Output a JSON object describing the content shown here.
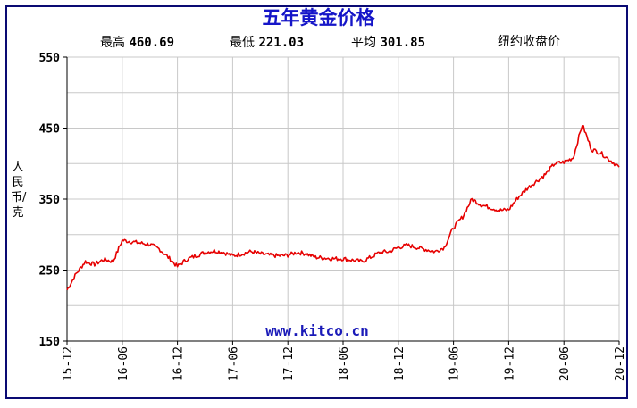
{
  "chart_data": {
    "type": "line",
    "title": "五年黄金价格",
    "stats": {
      "high_label": "最高",
      "high_value": "460.69",
      "low_label": "最低",
      "low_value": "221.03",
      "avg_label": "平均",
      "avg_value": "301.85"
    },
    "note": "纽约收盘价",
    "ylabel": "人民币/克",
    "ylim": [
      150,
      550
    ],
    "yticks": [
      "150",
      "250",
      "350",
      "450",
      "550"
    ],
    "xticks": [
      "15-12",
      "16-06",
      "16-12",
      "17-06",
      "17-12",
      "18-06",
      "18-12",
      "19-06",
      "19-12",
      "20-06",
      "20-12"
    ],
    "grid": true,
    "watermark": "www.kitco.cn",
    "series": [
      {
        "color": "#e60000",
        "x": [
          "15-12",
          "16-01",
          "16-02",
          "16-03",
          "16-04",
          "16-05",
          "16-06",
          "16-07",
          "16-08",
          "16-09",
          "16-10",
          "16-11",
          "16-12",
          "17-01",
          "17-02",
          "17-03",
          "17-04",
          "17-05",
          "17-06",
          "17-07",
          "17-08",
          "17-09",
          "17-10",
          "17-11",
          "17-12",
          "18-01",
          "18-02",
          "18-03",
          "18-04",
          "18-05",
          "18-06",
          "18-07",
          "18-08",
          "18-09",
          "18-10",
          "18-11",
          "18-12",
          "19-01",
          "19-02",
          "19-03",
          "19-04",
          "19-05",
          "19-06",
          "19-07",
          "19-08",
          "19-09",
          "19-10",
          "19-11",
          "19-12",
          "20-01",
          "20-02",
          "20-03",
          "20-04",
          "20-05",
          "20-06",
          "20-07",
          "20-08",
          "20-09",
          "20-10",
          "20-11",
          "20-12"
        ],
        "values": [
          222,
          245,
          262,
          258,
          265,
          262,
          292,
          290,
          288,
          286,
          280,
          268,
          255,
          265,
          270,
          275,
          277,
          275,
          270,
          273,
          276,
          273,
          271,
          270,
          271,
          275,
          273,
          268,
          267,
          266,
          266,
          264,
          262,
          268,
          275,
          276,
          282,
          285,
          282,
          279,
          276,
          282,
          310,
          325,
          350,
          342,
          338,
          334,
          335,
          352,
          365,
          375,
          385,
          400,
          402,
          408,
          455,
          420,
          415,
          405,
          395
        ]
      }
    ]
  }
}
